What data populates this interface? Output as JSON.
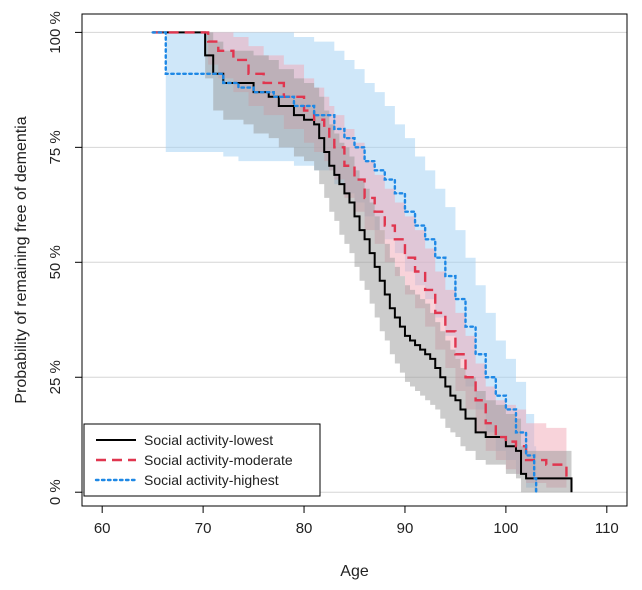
{
  "chart_data": {
    "type": "line",
    "subtype": "kaplan-meier step survival curves with confidence bands",
    "title": "",
    "xlabel": "Age",
    "ylabel": "Probability of remaining free of dementia",
    "xlim": [
      58,
      112
    ],
    "ylim": [
      -0.03,
      1.04
    ],
    "xticks": [
      60,
      70,
      80,
      90,
      100,
      110
    ],
    "xtick_labels": [
      "60",
      "70",
      "80",
      "90",
      "100",
      "110"
    ],
    "yticks": [
      0,
      0.25,
      0.5,
      0.75,
      1.0
    ],
    "ytick_labels": [
      "0 %",
      "25 %",
      "50 %",
      "75 %",
      "100 %"
    ],
    "grid": "horizontal",
    "legend_position": "bottom-left",
    "series": [
      {
        "name": "Social activity-lowest",
        "color": "#000000",
        "band_color": "#9a9a9a",
        "linestyle": "solid",
        "x": [
          65,
          70.2,
          71,
          72,
          74,
          75,
          76.5,
          77.5,
          79,
          80,
          81,
          81.5,
          82,
          82.5,
          83,
          83.5,
          84,
          84.5,
          85,
          85.5,
          86,
          86.5,
          87,
          87.5,
          88,
          88.5,
          89,
          89.5,
          90,
          90.5,
          91,
          91.5,
          92,
          92.5,
          93,
          93.5,
          94,
          94.5,
          95,
          95.5,
          96,
          97,
          98,
          99,
          100,
          101,
          101.5,
          102,
          104,
          105.5,
          106.5
        ],
        "y": [
          1.0,
          0.95,
          0.91,
          0.89,
          0.89,
          0.87,
          0.86,
          0.84,
          0.82,
          0.81,
          0.8,
          0.77,
          0.74,
          0.71,
          0.69,
          0.67,
          0.65,
          0.63,
          0.6,
          0.57,
          0.55,
          0.52,
          0.49,
          0.46,
          0.43,
          0.4,
          0.38,
          0.36,
          0.34,
          0.33,
          0.32,
          0.31,
          0.3,
          0.29,
          0.27,
          0.25,
          0.23,
          0.21,
          0.2,
          0.18,
          0.16,
          0.13,
          0.12,
          0.12,
          0.1,
          0.09,
          0.04,
          0.03,
          0.03,
          0.03,
          0.0
        ],
        "lower": [
          1.0,
          0.9,
          0.83,
          0.81,
          0.8,
          0.78,
          0.77,
          0.75,
          0.73,
          0.72,
          0.7,
          0.67,
          0.64,
          0.61,
          0.59,
          0.56,
          0.54,
          0.52,
          0.49,
          0.46,
          0.44,
          0.41,
          0.38,
          0.35,
          0.33,
          0.3,
          0.28,
          0.26,
          0.24,
          0.23,
          0.22,
          0.21,
          0.2,
          0.19,
          0.18,
          0.16,
          0.14,
          0.13,
          0.12,
          0.1,
          0.09,
          0.07,
          0.06,
          0.06,
          0.04,
          0.03,
          0.0,
          0.0,
          0.0,
          0.0,
          0.0
        ],
        "upper": [
          1.0,
          1.0,
          0.98,
          0.96,
          0.96,
          0.95,
          0.94,
          0.92,
          0.9,
          0.89,
          0.88,
          0.86,
          0.83,
          0.8,
          0.78,
          0.76,
          0.75,
          0.73,
          0.7,
          0.68,
          0.66,
          0.63,
          0.6,
          0.57,
          0.54,
          0.51,
          0.49,
          0.47,
          0.45,
          0.44,
          0.43,
          0.42,
          0.41,
          0.39,
          0.37,
          0.35,
          0.33,
          0.31,
          0.29,
          0.27,
          0.25,
          0.22,
          0.2,
          0.19,
          0.17,
          0.16,
          0.1,
          0.09,
          0.09,
          0.09,
          0.05
        ]
      },
      {
        "name": "Social activity-moderate",
        "color": "#e0364f",
        "band_color": "#f2a7b5",
        "linestyle": "dashed",
        "x": [
          65,
          70.5,
          71.5,
          73,
          74.5,
          76,
          78,
          80,
          81,
          82,
          82.5,
          83,
          84,
          85,
          86,
          87,
          88,
          89,
          90,
          91,
          92,
          93,
          94,
          95,
          96,
          97,
          98,
          99,
          100,
          101,
          102,
          103,
          104,
          105,
          106
        ],
        "y": [
          1.0,
          0.98,
          0.96,
          0.94,
          0.91,
          0.89,
          0.86,
          0.83,
          0.81,
          0.79,
          0.77,
          0.75,
          0.71,
          0.68,
          0.64,
          0.61,
          0.58,
          0.55,
          0.51,
          0.48,
          0.44,
          0.39,
          0.35,
          0.3,
          0.25,
          0.2,
          0.15,
          0.12,
          0.11,
          0.1,
          0.07,
          0.07,
          0.06,
          0.06,
          0.03
        ],
        "lower": [
          1.0,
          0.93,
          0.9,
          0.87,
          0.84,
          0.82,
          0.79,
          0.76,
          0.74,
          0.72,
          0.7,
          0.68,
          0.64,
          0.61,
          0.57,
          0.54,
          0.5,
          0.47,
          0.43,
          0.4,
          0.36,
          0.31,
          0.27,
          0.22,
          0.18,
          0.13,
          0.09,
          0.07,
          0.05,
          0.04,
          0.02,
          0.02,
          0.01,
          0.01,
          0.0
        ],
        "upper": [
          1.0,
          1.0,
          1.0,
          0.99,
          0.97,
          0.95,
          0.93,
          0.9,
          0.88,
          0.86,
          0.84,
          0.82,
          0.79,
          0.76,
          0.72,
          0.69,
          0.66,
          0.63,
          0.6,
          0.57,
          0.53,
          0.48,
          0.44,
          0.39,
          0.34,
          0.28,
          0.23,
          0.2,
          0.19,
          0.18,
          0.15,
          0.15,
          0.14,
          0.14,
          0.09
        ]
      },
      {
        "name": "Social activity-highest",
        "color": "#1e88e5",
        "band_color": "#9fd0f3",
        "linestyle": "dotted",
        "x": [
          65,
          66.3,
          69.5,
          71,
          72,
          73.5,
          75,
          77,
          79,
          81,
          83,
          84,
          85,
          86,
          87,
          88,
          89,
          90,
          91,
          92,
          93,
          94,
          95,
          96,
          97,
          98,
          99,
          100,
          101,
          102,
          102.8,
          103
        ],
        "y": [
          1.0,
          0.91,
          0.91,
          0.91,
          0.89,
          0.88,
          0.87,
          0.86,
          0.84,
          0.82,
          0.79,
          0.77,
          0.75,
          0.72,
          0.7,
          0.68,
          0.65,
          0.61,
          0.58,
          0.55,
          0.51,
          0.47,
          0.42,
          0.36,
          0.3,
          0.25,
          0.21,
          0.18,
          0.13,
          0.08,
          0.03,
          0.0
        ],
        "lower": [
          1.0,
          0.74,
          0.74,
          0.74,
          0.73,
          0.72,
          0.72,
          0.72,
          0.71,
          0.7,
          0.67,
          0.65,
          0.63,
          0.6,
          0.57,
          0.55,
          0.52,
          0.48,
          0.45,
          0.42,
          0.38,
          0.34,
          0.29,
          0.23,
          0.18,
          0.13,
          0.09,
          0.07,
          0.04,
          0.01,
          0.0,
          0.0
        ],
        "upper": [
          1.0,
          1.0,
          1.0,
          1.0,
          1.0,
          1.0,
          1.0,
          1.0,
          0.99,
          0.98,
          0.96,
          0.94,
          0.92,
          0.89,
          0.87,
          0.84,
          0.8,
          0.77,
          0.73,
          0.7,
          0.66,
          0.62,
          0.57,
          0.51,
          0.45,
          0.39,
          0.33,
          0.29,
          0.24,
          0.17,
          0.1,
          0.1
        ]
      }
    ]
  }
}
